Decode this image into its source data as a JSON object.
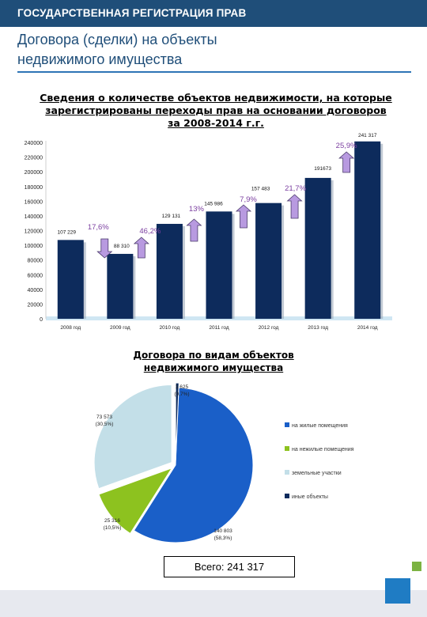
{
  "header": {
    "title": "ГОСУДАРСТВЕННАЯ РЕГИСТРАЦИЯ ПРАВ"
  },
  "page": {
    "heading_line1": "Договора (сделки) на объекты",
    "heading_line2": "недвижимого имущества"
  },
  "chart_data": [
    {
      "type": "bar",
      "title_lines": [
        "Сведения о количестве объектов недвижимости, на которые",
        "зарегистрированы переходы прав на основании договоров",
        "за 2008-2014 г.г."
      ],
      "categories": [
        "2008 год",
        "2009 год",
        "2010 год",
        "2011 год",
        "2012 год",
        "2013 год",
        "2014 год"
      ],
      "values": [
        107229,
        88310,
        129131,
        145986,
        157483,
        191673,
        241317
      ],
      "data_labels": [
        "107 229",
        "88 310",
        "129 131",
        "145 986",
        "157 483",
        "191673",
        "241 317"
      ],
      "ylim": [
        0,
        240000
      ],
      "yticks": [
        0,
        20000,
        40000,
        60000,
        80000,
        100000,
        120000,
        140000,
        160000,
        180000,
        200000,
        220000,
        240000
      ],
      "grid": false,
      "bar_color": "#0d2b5c",
      "changes": [
        {
          "label": "17,6%",
          "direction": "down",
          "between": [
            0,
            1
          ]
        },
        {
          "label": "46,2%",
          "direction": "up",
          "between": [
            1,
            2
          ]
        },
        {
          "label": "13%",
          "direction": "up",
          "between": [
            2,
            3
          ]
        },
        {
          "label": "7,9%",
          "direction": "up",
          "between": [
            3,
            4
          ]
        },
        {
          "label": "21,7%",
          "direction": "up",
          "between": [
            4,
            5
          ]
        },
        {
          "label": "25,9%",
          "direction": "up",
          "between": [
            5,
            6
          ]
        }
      ],
      "change_color": "#7b3fa0",
      "arrow_color": "#b89ae0"
    },
    {
      "type": "pie",
      "title_lines": [
        "Договора по видам объектов",
        "недвижимого имущества"
      ],
      "slices": [
        {
          "name": "на жилые помещения",
          "value": 140803,
          "label": "140 803",
          "pct": "(58,3%)",
          "color": "#1a5fc8"
        },
        {
          "name": "на нежилые помещения",
          "value": 25316,
          "label": "25 316",
          "pct": "(10,5%)",
          "color": "#8dc21f"
        },
        {
          "name": "земельные участки",
          "value": 73573,
          "label": "73 573",
          "pct": "(30,5%)",
          "color": "#c3dfe8"
        },
        {
          "name": "иные объекты",
          "value": 1625,
          "label": "1 625",
          "pct": "(0,7%)",
          "color": "#0d2b5c"
        }
      ],
      "legend_position": "right"
    }
  ],
  "total": {
    "text": "Всего: 241 317"
  }
}
